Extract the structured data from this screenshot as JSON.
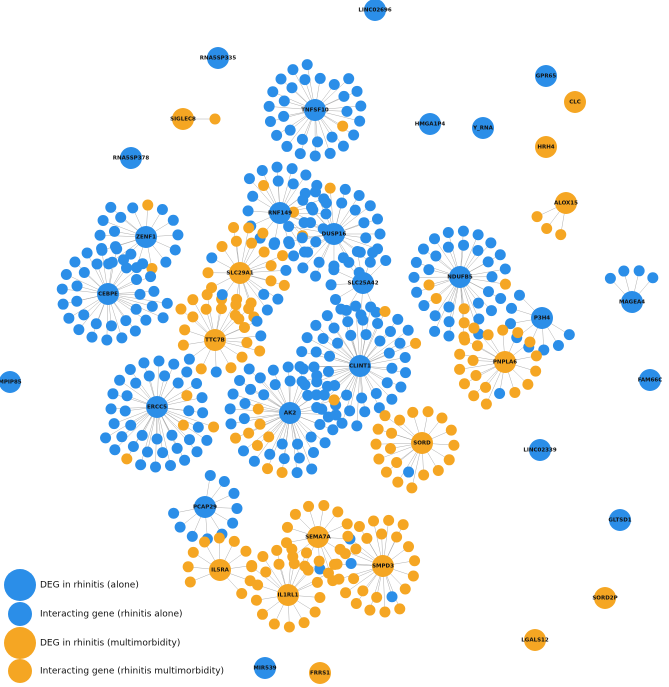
{
  "nodes": [
    {
      "label": "LINC02696",
      "group": "rhinitis-alone"
    },
    {
      "label": "RNA5SP335",
      "group": "rhinitis-alone"
    },
    {
      "label": "GPR65",
      "group": "rhinitis-alone"
    },
    {
      "label": "CLC",
      "group": "rhinitis-multimorbidity"
    },
    {
      "label": "SIGLEC8",
      "group": "rhinitis-multimorbidity"
    },
    {
      "label": "HMGA1P4",
      "group": "rhinitis-alone"
    },
    {
      "label": "Y_RNA",
      "group": "rhinitis-alone"
    },
    {
      "label": "RNA5SP378",
      "group": "rhinitis-alone"
    },
    {
      "label": "HRH4",
      "group": "rhinitis-multimorbidity"
    },
    {
      "label": "ALOX15",
      "group": "rhinitis-multimorbidity"
    },
    {
      "label": "TNFSF10",
      "group": "rhinitis-alone"
    },
    {
      "label": "RNF149",
      "group": "rhinitis-alone"
    },
    {
      "label": "DUSP16",
      "group": "rhinitis-alone"
    },
    {
      "label": "NDUFB5",
      "group": "rhinitis-alone"
    },
    {
      "label": "ZENF1",
      "group": "rhinitis-alone"
    },
    {
      "label": "CEBPE",
      "group": "rhinitis-alone"
    },
    {
      "label": "SLC29A1",
      "group": "rhinitis-multimorbidity"
    },
    {
      "label": "SLC25A42",
      "group": "rhinitis-alone"
    },
    {
      "label": "TTC7B",
      "group": "rhinitis-multimorbidity"
    },
    {
      "label": "P3H4",
      "group": "rhinitis-alone"
    },
    {
      "label": "MAGEA4",
      "group": "rhinitis-alone"
    },
    {
      "label": "CLINT1",
      "group": "rhinitis-alone"
    },
    {
      "label": "PNPLA6",
      "group": "rhinitis-multimorbidity"
    },
    {
      "label": "MPIP85",
      "group": "rhinitis-alone"
    },
    {
      "label": "FAM66C",
      "group": "rhinitis-alone"
    },
    {
      "label": "ERCC5",
      "group": "rhinitis-alone"
    },
    {
      "label": "AK2",
      "group": "rhinitis-alone"
    },
    {
      "label": "SORD",
      "group": "rhinitis-multimorbidity"
    },
    {
      "label": "LINC02339",
      "group": "rhinitis-alone"
    },
    {
      "label": "PCAP29",
      "group": "rhinitis-alone"
    },
    {
      "label": "SEMA7A",
      "group": "rhinitis-multimorbidity"
    },
    {
      "label": "IL5RA",
      "group": "rhinitis-multimorbidity"
    },
    {
      "label": "IL1RL1",
      "group": "rhinitis-multimorbidity"
    },
    {
      "label": "SMPD3",
      "group": "rhinitis-multimorbidity"
    },
    {
      "label": "GLTSD1",
      "group": "rhinitis-alone"
    },
    {
      "label": "SORD2P",
      "group": "rhinitis-multimorbidity"
    },
    {
      "label": "LGALS12",
      "group": "rhinitis-multimorbidity"
    },
    {
      "label": "MIR539",
      "group": "rhinitis-alone"
    },
    {
      "label": "FRRS1",
      "group": "rhinitis-multimorbidity"
    }
  ],
  "colors": {
    "rhinitis-alone": "#2b8ee8",
    "rhinitis-multimorbidity": "#f5a623"
  },
  "legend": [
    {
      "label": "DEG in rhinitis (alone)",
      "group": "rhinitis-alone",
      "kind": "deg"
    },
    {
      "label": "Interacting gene (rhinitis alone)",
      "group": "rhinitis-alone",
      "kind": "interacting"
    },
    {
      "label": "DEG in rhinitis (multimorbidity)",
      "group": "rhinitis-multimorbidity",
      "kind": "deg"
    },
    {
      "label": "Interacting gene (rhinitis multimorbidity)",
      "group": "rhinitis-multimorbidity",
      "kind": "interacting"
    }
  ]
}
